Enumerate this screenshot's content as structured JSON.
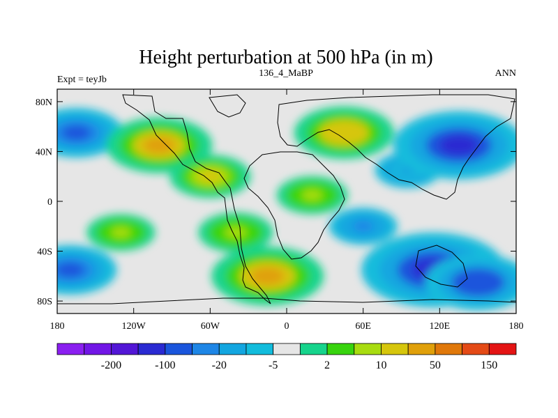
{
  "chart_data": {
    "type": "heatmap",
    "title": "Height perturbation at 500 hPa (in m)",
    "subtitle_left": "Expt = teyJb",
    "subtitle_center": "136_4_MaBP",
    "subtitle_right": "ANN",
    "xlim": [
      -180,
      180
    ],
    "ylim": [
      -90,
      90
    ],
    "x_ticks": [
      {
        "value": -180,
        "label": "180"
      },
      {
        "value": -120,
        "label": "120W"
      },
      {
        "value": -60,
        "label": "60W"
      },
      {
        "value": 0,
        "label": "0"
      },
      {
        "value": 60,
        "label": "60E"
      },
      {
        "value": 120,
        "label": "120E"
      },
      {
        "value": 180,
        "label": "180"
      }
    ],
    "y_ticks": [
      {
        "value": 80,
        "label": "80N"
      },
      {
        "value": 40,
        "label": "40N"
      },
      {
        "value": 0,
        "label": "0"
      },
      {
        "value": -40,
        "label": "40S"
      },
      {
        "value": -80,
        "label": "80S"
      }
    ],
    "colorbar": {
      "colors": [
        "#8a1ff0",
        "#7116e6",
        "#5216d6",
        "#2a2ad2",
        "#1a55dc",
        "#1e86e6",
        "#13a6e0",
        "#12bcdc",
        "#e6e6e6",
        "#16d48c",
        "#38d40e",
        "#a8dc10",
        "#d6c60c",
        "#e0a00a",
        "#e0780a",
        "#e44a16",
        "#e41414"
      ],
      "labels": [
        {
          "after_index": 1,
          "label": "-200"
        },
        {
          "after_index": 3,
          "label": "-100"
        },
        {
          "after_index": 5,
          "label": "-20"
        },
        {
          "after_index": 7,
          "label": "-5"
        },
        {
          "after_index": 9,
          "label": "2"
        },
        {
          "after_index": 11,
          "label": "10"
        },
        {
          "after_index": 13,
          "label": "50"
        },
        {
          "after_index": 15,
          "label": "150"
        }
      ]
    },
    "field_features": [
      {
        "lon": -165,
        "lat": 55,
        "value": -30
      },
      {
        "lon": -170,
        "lat": -55,
        "value": -30
      },
      {
        "lon": -100,
        "lat": 45,
        "value": 40
      },
      {
        "lon": -60,
        "lat": 20,
        "value": 20
      },
      {
        "lon": -40,
        "lat": -25,
        "value": 15
      },
      {
        "lon": -15,
        "lat": -60,
        "value": 45
      },
      {
        "lon": 45,
        "lat": 55,
        "value": 35
      },
      {
        "lon": 20,
        "lat": 5,
        "value": 12
      },
      {
        "lon": 60,
        "lat": -20,
        "value": -10
      },
      {
        "lon": 95,
        "lat": 25,
        "value": -8
      },
      {
        "lon": 135,
        "lat": 45,
        "value": -60
      },
      {
        "lon": 115,
        "lat": -55,
        "value": -70
      },
      {
        "lon": 150,
        "lat": -65,
        "value": -40
      },
      {
        "lon": -130,
        "lat": -25,
        "value": 10
      }
    ]
  }
}
